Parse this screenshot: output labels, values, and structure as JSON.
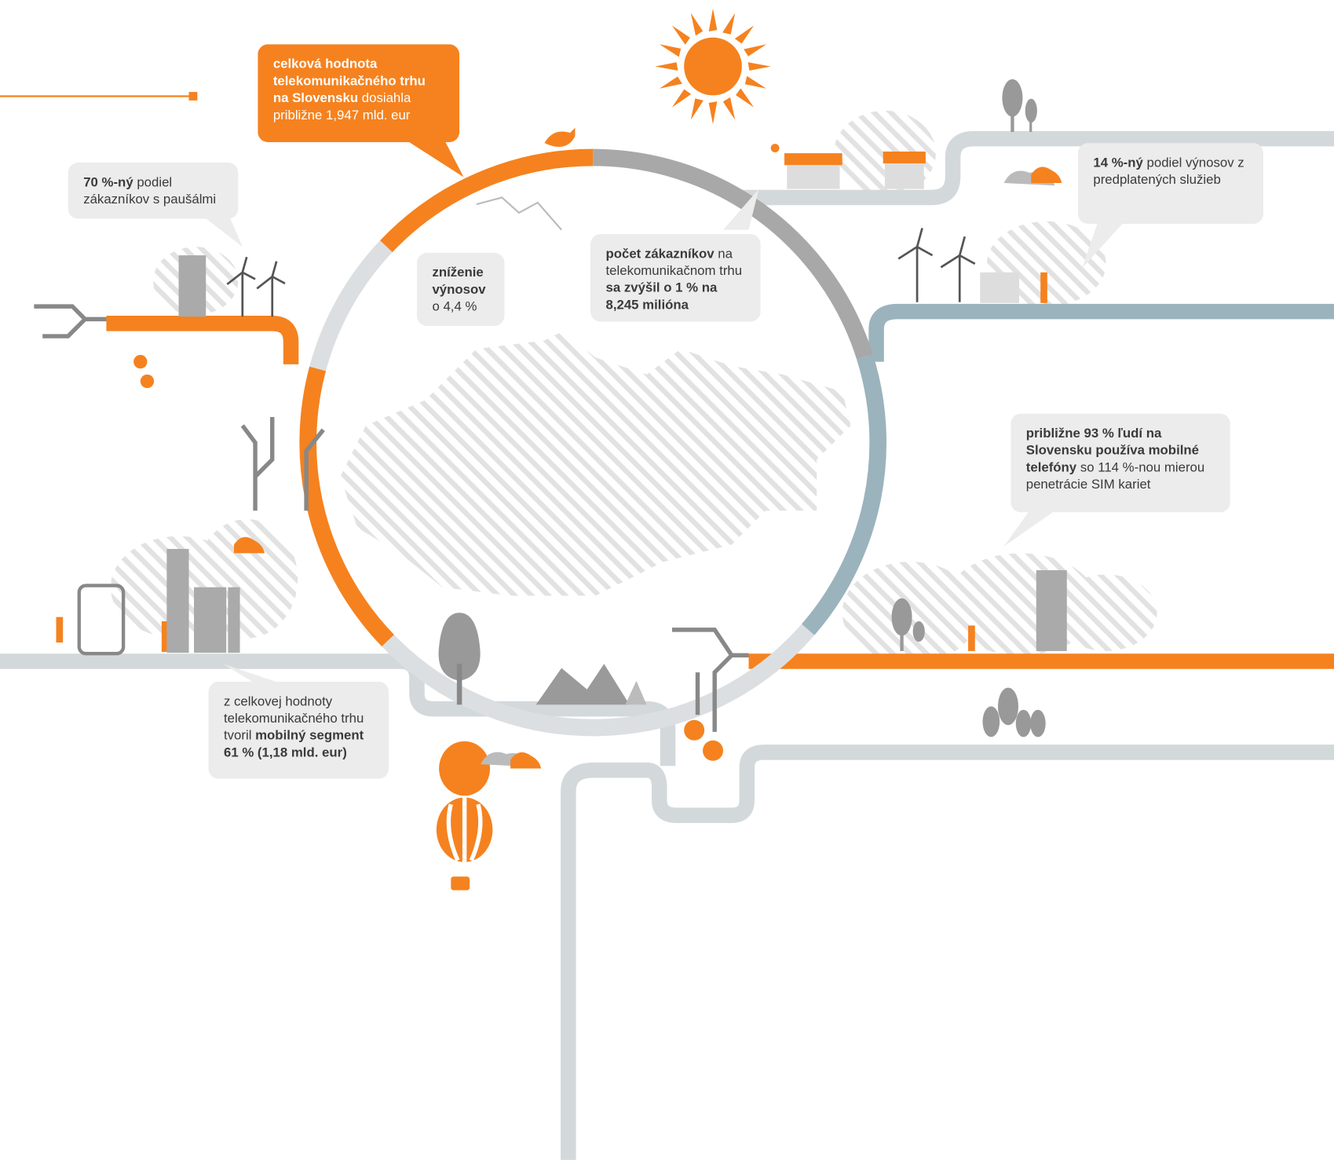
{
  "callouts": [
    {
      "style": "orange",
      "runs": [
        {
          "text": "celková hodnota telekomunikačného trhu na Slovensku",
          "bold": true
        },
        {
          "text": " dosiahla približne 1,947 mld. eur",
          "bold": false
        }
      ]
    },
    {
      "style": "gray",
      "runs": [
        {
          "text": "70 %-ný",
          "bold": true
        },
        {
          "text": " podiel zákazníkov s paušálmi",
          "bold": false
        }
      ]
    },
    {
      "style": "gray",
      "runs": [
        {
          "text": "zníženie výnosov",
          "bold": true
        },
        {
          "text": " o 4,4 %",
          "bold": false
        }
      ]
    },
    {
      "style": "gray",
      "runs": [
        {
          "text": "počet zákazníkov",
          "bold": true
        },
        {
          "text": " na telekomunikačnom trhu ",
          "bold": false
        },
        {
          "text": "sa zvýšil o 1 % na 8,245 milióna",
          "bold": true
        }
      ]
    },
    {
      "style": "gray",
      "runs": [
        {
          "text": "14 %-ný",
          "bold": true
        },
        {
          "text": " podiel výnosov z predplatených služieb",
          "bold": false
        }
      ]
    },
    {
      "style": "gray",
      "runs": [
        {
          "text": "približne 93 % ľudí na Slovensku používa mobilné telefóny",
          "bold": true
        },
        {
          "text": " so 114 %-nou mierou penetrácie SIM kariet",
          "bold": false
        }
      ]
    },
    {
      "style": "gray",
      "runs": [
        {
          "text": "z celkovej hodnoty telekomunikačného trhu tvoril ",
          "bold": false
        },
        {
          "text": "mobilný segment 61 % (1,18 mld. eur)",
          "bold": true
        }
      ]
    }
  ]
}
